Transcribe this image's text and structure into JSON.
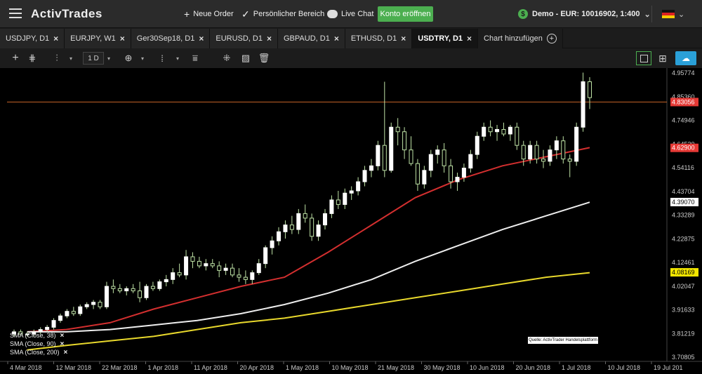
{
  "header": {
    "logo": "ActivTrades",
    "new_order": "Neue Order",
    "personal_area": "Persönlicher Bereich",
    "live_chat": "Live Chat",
    "open_account": "Konto eröffnen",
    "account": "Demo - EUR: 10016902, 1:400",
    "colors": {
      "accent": "#4caf50",
      "background": "#2b2b2b"
    }
  },
  "tabs": [
    {
      "label": "USDJPY, D1",
      "active": false
    },
    {
      "label": "EURJPY, W1",
      "active": false
    },
    {
      "label": "Ger30Sep18, D1",
      "active": false
    },
    {
      "label": "EURUSD, D1",
      "active": false
    },
    {
      "label": "GBPAUD, D1",
      "active": false
    },
    {
      "label": "ETHUSD, D1",
      "active": false
    },
    {
      "label": "USDTRY, D1",
      "active": true
    }
  ],
  "add_chart_label": "Chart hinzufügen",
  "toolbar": {
    "timeframe": "1 D",
    "icons": [
      "crosshair-icon",
      "grid-icon",
      "candles-icon",
      "add-indicator-icon",
      "line-tool-icon",
      "fib-icon",
      "layout-icon",
      "screenshot-icon",
      "trash-icon",
      "single-layout-icon",
      "multi-layout-icon",
      "cloud-icon"
    ]
  },
  "chart_data": {
    "type": "candlestick",
    "symbol": "USDTRY, D1",
    "y_ticks": [
      "4.95774",
      "4.85360",
      "4.74946",
      "4.64530",
      "4.54116",
      "4.43704",
      "4.33289",
      "4.22875",
      "4.12461",
      "4.02047",
      "3.91633",
      "3.81219",
      "3.70805"
    ],
    "x_ticks": [
      "4 Mar 2018",
      "12 Mar 2018",
      "22 Mar 2018",
      "1 Apr 2018",
      "11 Apr 2018",
      "20 Apr 2018",
      "1 May 2018",
      "10 May 2018",
      "21 May 2018",
      "30 May 2018",
      "10 Jun 2018",
      "20 Jun 2018",
      "1 Jul 2018",
      "10 Jul 2018",
      "19 Jul 201"
    ],
    "price_labels": [
      {
        "value": "4.83056",
        "color": "#e53935",
        "text_color": "#ffffff"
      },
      {
        "value": "4.62900",
        "color": "#e53935",
        "text_color": "#ffffff"
      },
      {
        "value": "4.39070",
        "color": "#ffffff",
        "text_color": "#000000"
      },
      {
        "value": "4.08169",
        "color": "#f2e600",
        "text_color": "#000000"
      }
    ],
    "horizontal_line": {
      "value": 4.83056,
      "color": "#c8642a"
    },
    "series": [
      {
        "name": "SMA (Close, 38)",
        "color": "#d32f2f",
        "x": [
          3,
          12,
          22,
          32,
          42,
          52,
          62,
          72,
          82,
          92,
          102,
          112,
          122,
          132
        ],
        "y": [
          3.82,
          3.83,
          3.86,
          3.92,
          3.97,
          4.02,
          4.06,
          4.17,
          4.29,
          4.41,
          4.49,
          4.55,
          4.59,
          4.63
        ]
      },
      {
        "name": "SMA (Close, 90)",
        "color": "#eeeeee",
        "x": [
          3,
          12,
          22,
          32,
          42,
          52,
          62,
          72,
          82,
          92,
          102,
          112,
          122,
          132
        ],
        "y": [
          3.82,
          3.82,
          3.83,
          3.85,
          3.87,
          3.9,
          3.94,
          3.99,
          4.05,
          4.13,
          4.2,
          4.27,
          4.33,
          4.39
        ]
      },
      {
        "name": "SMA (Close, 200)",
        "color": "#e8d82c",
        "x": [
          3,
          12,
          22,
          32,
          42,
          52,
          62,
          72,
          82,
          92,
          102,
          112,
          122,
          132
        ],
        "y": [
          3.74,
          3.76,
          3.78,
          3.8,
          3.83,
          3.86,
          3.88,
          3.91,
          3.94,
          3.97,
          4.0,
          4.03,
          4.06,
          4.08
        ]
      }
    ],
    "candles": [
      [
        3.81,
        3.83,
        3.8,
        3.82
      ],
      [
        3.82,
        3.83,
        3.81,
        3.81
      ],
      [
        3.81,
        3.82,
        3.8,
        3.81
      ],
      [
        3.81,
        3.83,
        3.8,
        3.82
      ],
      [
        3.82,
        3.84,
        3.81,
        3.83
      ],
      [
        3.83,
        3.85,
        3.82,
        3.84
      ],
      [
        3.84,
        3.88,
        3.83,
        3.87
      ],
      [
        3.87,
        3.9,
        3.86,
        3.89
      ],
      [
        3.89,
        3.92,
        3.88,
        3.91
      ],
      [
        3.91,
        3.93,
        3.89,
        3.9
      ],
      [
        3.9,
        3.94,
        3.89,
        3.93
      ],
      [
        3.93,
        3.95,
        3.92,
        3.94
      ],
      [
        3.94,
        3.96,
        3.92,
        3.95
      ],
      [
        3.95,
        3.96,
        3.92,
        3.93
      ],
      [
        3.93,
        4.04,
        3.92,
        4.02
      ],
      [
        4.02,
        4.05,
        3.99,
        4.01
      ],
      [
        4.01,
        4.03,
        3.99,
        4.0
      ],
      [
        4.0,
        4.02,
        3.98,
        4.01
      ],
      [
        4.01,
        4.03,
        3.99,
        4.0
      ],
      [
        4.0,
        4.04,
        3.95,
        3.97
      ],
      [
        3.97,
        4.03,
        3.96,
        4.02
      ],
      [
        4.02,
        4.04,
        4.0,
        4.01
      ],
      [
        4.01,
        4.05,
        4.0,
        4.04
      ],
      [
        4.04,
        4.07,
        4.02,
        4.05
      ],
      [
        4.05,
        4.1,
        4.03,
        4.08
      ],
      [
        4.08,
        4.12,
        4.06,
        4.07
      ],
      [
        4.07,
        4.18,
        4.05,
        4.15
      ],
      [
        4.15,
        4.17,
        4.1,
        4.13
      ],
      [
        4.13,
        4.15,
        4.1,
        4.11
      ],
      [
        4.11,
        4.14,
        4.09,
        4.12
      ],
      [
        4.12,
        4.14,
        4.1,
        4.11
      ],
      [
        4.11,
        4.13,
        4.06,
        4.09
      ],
      [
        4.09,
        4.12,
        4.07,
        4.1
      ],
      [
        4.1,
        4.12,
        4.06,
        4.07
      ],
      [
        4.07,
        4.1,
        4.04,
        4.06
      ],
      [
        4.06,
        4.09,
        4.03,
        4.05
      ],
      [
        4.05,
        4.09,
        4.03,
        4.08
      ],
      [
        4.08,
        4.14,
        4.07,
        4.12
      ],
      [
        4.12,
        4.2,
        4.1,
        4.19
      ],
      [
        4.19,
        4.24,
        4.16,
        4.22
      ],
      [
        4.22,
        4.28,
        4.2,
        4.26
      ],
      [
        4.26,
        4.31,
        4.23,
        4.29
      ],
      [
        4.29,
        4.33,
        4.25,
        4.27
      ],
      [
        4.27,
        4.36,
        4.25,
        4.34
      ],
      [
        4.34,
        4.38,
        4.3,
        4.32
      ],
      [
        4.32,
        4.34,
        4.22,
        4.24
      ],
      [
        4.24,
        4.31,
        4.22,
        4.29
      ],
      [
        4.29,
        4.36,
        4.27,
        4.34
      ],
      [
        4.34,
        4.42,
        4.32,
        4.4
      ],
      [
        4.4,
        4.44,
        4.36,
        4.38
      ],
      [
        4.38,
        4.45,
        4.36,
        4.43
      ],
      [
        4.43,
        4.46,
        4.4,
        4.44
      ],
      [
        4.44,
        4.5,
        4.42,
        4.48
      ],
      [
        4.48,
        4.55,
        4.46,
        4.53
      ],
      [
        4.53,
        4.58,
        4.5,
        4.55
      ],
      [
        4.55,
        4.66,
        4.53,
        4.64
      ],
      [
        4.64,
        4.92,
        4.5,
        4.53
      ],
      [
        4.53,
        4.74,
        4.52,
        4.72
      ],
      [
        4.72,
        4.76,
        4.64,
        4.7
      ],
      [
        4.7,
        4.72,
        4.58,
        4.62
      ],
      [
        4.62,
        4.68,
        4.55,
        4.56
      ],
      [
        4.56,
        4.58,
        4.44,
        4.47
      ],
      [
        4.47,
        4.55,
        4.45,
        4.53
      ],
      [
        4.53,
        4.62,
        4.5,
        4.6
      ],
      [
        4.6,
        4.64,
        4.56,
        4.62
      ],
      [
        4.62,
        4.65,
        4.52,
        4.55
      ],
      [
        4.55,
        4.58,
        4.45,
        4.48
      ],
      [
        4.48,
        4.52,
        4.44,
        4.5
      ],
      [
        4.5,
        4.56,
        4.48,
        4.54
      ],
      [
        4.54,
        4.62,
        4.52,
        4.6
      ],
      [
        4.6,
        4.7,
        4.58,
        4.68
      ],
      [
        4.68,
        4.74,
        4.66,
        4.72
      ],
      [
        4.72,
        4.75,
        4.68,
        4.7
      ],
      [
        4.7,
        4.73,
        4.66,
        4.71
      ],
      [
        4.71,
        4.74,
        4.68,
        4.69
      ],
      [
        4.69,
        4.73,
        4.66,
        4.72
      ],
      [
        4.72,
        4.74,
        4.62,
        4.64
      ],
      [
        4.64,
        4.66,
        4.55,
        4.58
      ],
      [
        4.58,
        4.66,
        4.56,
        4.64
      ],
      [
        4.64,
        4.66,
        4.56,
        4.58
      ],
      [
        4.58,
        4.62,
        4.54,
        4.57
      ],
      [
        4.57,
        4.64,
        4.55,
        4.62
      ],
      [
        4.62,
        4.68,
        4.58,
        4.66
      ],
      [
        4.66,
        4.68,
        4.56,
        4.58
      ],
      [
        4.58,
        4.6,
        4.5,
        4.57
      ],
      [
        4.57,
        4.74,
        4.55,
        4.72
      ],
      [
        4.72,
        4.96,
        4.7,
        4.92
      ],
      [
        4.92,
        4.94,
        4.8,
        4.85
      ]
    ]
  },
  "legend": [
    "SMA (Close, 38)",
    "SMA (Close, 90)",
    "SMA (Close, 200)"
  ],
  "source": "Quelle: ActivTrader Handelsplattform"
}
